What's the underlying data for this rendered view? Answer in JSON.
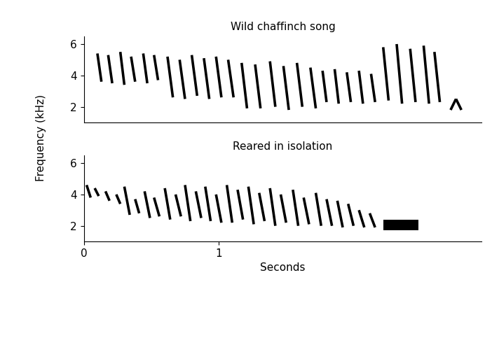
{
  "chart_data": [
    {
      "type": "sonogram",
      "title": "Wild chaffinch song",
      "ylabel": "Frequency (kHz)",
      "xlim": [
        0,
        2.95
      ],
      "ylim": [
        1,
        6.5
      ],
      "yticks": [
        2,
        4,
        6
      ],
      "tick_labels": "y",
      "color": "#000000",
      "notes": [
        [
          0.1,
          0.13,
          5.4,
          3.6
        ],
        [
          0.18,
          0.21,
          5.3,
          3.5
        ],
        [
          0.27,
          0.3,
          5.5,
          3.4
        ],
        [
          0.35,
          0.38,
          5.2,
          3.6
        ],
        [
          0.44,
          0.47,
          5.4,
          3.5
        ],
        [
          0.52,
          0.55,
          5.3,
          3.7
        ],
        [
          0.62,
          0.66,
          5.2,
          2.6
        ],
        [
          0.71,
          0.75,
          5.0,
          2.5
        ],
        [
          0.8,
          0.84,
          5.3,
          2.7
        ],
        [
          0.89,
          0.93,
          5.1,
          2.5
        ],
        [
          0.98,
          1.02,
          5.2,
          2.6
        ],
        [
          1.07,
          1.11,
          5.0,
          2.6
        ],
        [
          1.17,
          1.21,
          4.8,
          1.9
        ],
        [
          1.27,
          1.31,
          4.7,
          1.9
        ],
        [
          1.38,
          1.42,
          4.9,
          2.0
        ],
        [
          1.48,
          1.52,
          4.6,
          1.8
        ],
        [
          1.58,
          1.62,
          4.8,
          2.0
        ],
        [
          1.68,
          1.72,
          4.5,
          1.9
        ],
        [
          1.77,
          1.8,
          4.3,
          2.3
        ],
        [
          1.86,
          1.89,
          4.4,
          2.2
        ],
        [
          1.95,
          1.98,
          4.2,
          2.3
        ],
        [
          2.04,
          2.07,
          4.3,
          2.2
        ],
        [
          2.13,
          2.16,
          4.1,
          2.3
        ],
        [
          2.22,
          2.26,
          5.8,
          2.4
        ],
        [
          2.32,
          2.36,
          6.0,
          2.2
        ],
        [
          2.42,
          2.46,
          5.7,
          2.3
        ],
        [
          2.52,
          2.56,
          5.9,
          2.2
        ],
        [
          2.6,
          2.64,
          5.5,
          2.3
        ],
        [
          2.72,
          2.76,
          1.8,
          2.5
        ],
        [
          2.76,
          2.8,
          2.5,
          1.8
        ]
      ]
    },
    {
      "type": "sonogram",
      "title": "Reared in isolation",
      "xlabel": "Seconds",
      "xlim": [
        0,
        2.95
      ],
      "ylim": [
        1,
        6.5
      ],
      "xticks": [
        0,
        1
      ],
      "yticks": [
        2,
        4,
        6
      ],
      "color": "#000000",
      "notes": [
        [
          0.02,
          0.05,
          4.6,
          3.8
        ],
        [
          0.08,
          0.11,
          4.4,
          3.9
        ],
        [
          0.16,
          0.19,
          4.2,
          3.6
        ],
        [
          0.24,
          0.27,
          4.0,
          3.4
        ],
        [
          0.3,
          0.34,
          4.5,
          2.7
        ],
        [
          0.38,
          0.41,
          3.7,
          2.8
        ],
        [
          0.45,
          0.49,
          4.2,
          2.5
        ],
        [
          0.52,
          0.56,
          3.8,
          2.6
        ],
        [
          0.6,
          0.64,
          4.4,
          2.4
        ],
        [
          0.68,
          0.72,
          4.0,
          2.6
        ],
        [
          0.75,
          0.79,
          4.6,
          2.3
        ],
        [
          0.83,
          0.87,
          4.2,
          2.5
        ],
        [
          0.9,
          0.94,
          4.5,
          2.3
        ],
        [
          0.98,
          1.02,
          4.0,
          2.2
        ],
        [
          1.06,
          1.1,
          4.6,
          2.2
        ],
        [
          1.14,
          1.18,
          4.3,
          2.4
        ],
        [
          1.22,
          1.26,
          4.5,
          2.1
        ],
        [
          1.3,
          1.34,
          4.1,
          2.3
        ],
        [
          1.38,
          1.42,
          4.4,
          2.0
        ],
        [
          1.46,
          1.5,
          4.0,
          2.2
        ],
        [
          1.55,
          1.59,
          4.3,
          2.0
        ],
        [
          1.63,
          1.67,
          3.8,
          2.1
        ],
        [
          1.72,
          1.76,
          4.1,
          2.0
        ],
        [
          1.8,
          1.84,
          3.7,
          2.0
        ],
        [
          1.88,
          1.92,
          3.6,
          1.9
        ],
        [
          1.96,
          2.0,
          3.4,
          2.0
        ],
        [
          2.04,
          2.08,
          3.0,
          1.9
        ],
        [
          2.12,
          2.16,
          2.8,
          1.9
        ]
      ],
      "bands": [
        [
          2.22,
          2.48,
          1.7,
          2.4
        ]
      ]
    }
  ]
}
